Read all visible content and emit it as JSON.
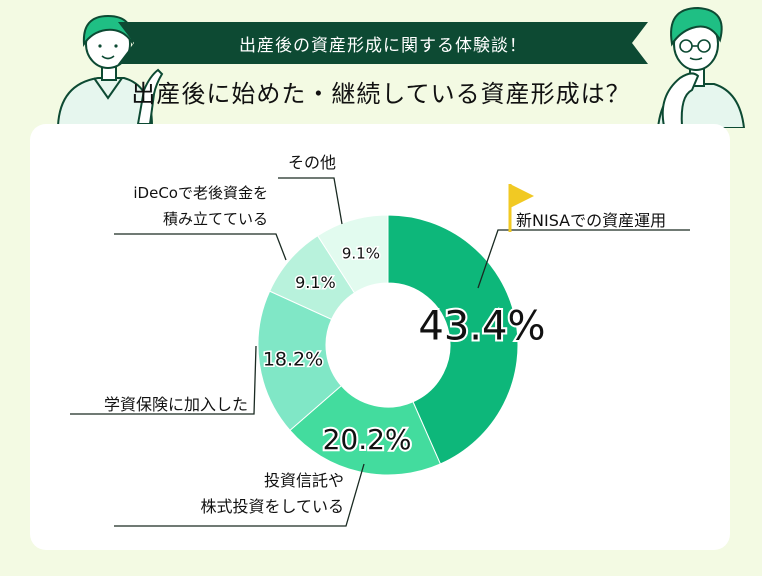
{
  "banner": {
    "text": "出産後の資産形成に関する体験談！"
  },
  "headline": "出産後に始めた・継続している資産形成は？",
  "colors": {
    "dark_green": "#0d4a33",
    "nisa": "#0db77a",
    "toushi": "#43dc9e",
    "hoken": "#80e7c6",
    "ideco": "#b8f2dc",
    "other": "#e2fbef",
    "flag": "#f1c923"
  },
  "chart_data": {
    "type": "donut",
    "unit": "%",
    "slices": [
      {
        "label_lines": [
          "新NISAでの資産運用"
        ],
        "value": 43.4,
        "value_label": "43.4%"
      },
      {
        "label_lines": [
          "投資信託や",
          "株式投資をしている"
        ],
        "value": 20.2,
        "value_label": "20.2%"
      },
      {
        "label_lines": [
          "学資保険に加入した"
        ],
        "value": 18.2,
        "value_label": "18.2%"
      },
      {
        "label_lines": [
          "iDeCoで老後資金を",
          "積み立てている"
        ],
        "value": 9.1,
        "value_label": "9.1%"
      },
      {
        "label_lines": [
          "その他"
        ],
        "value": 9.1,
        "value_label": "9.1%"
      }
    ]
  }
}
